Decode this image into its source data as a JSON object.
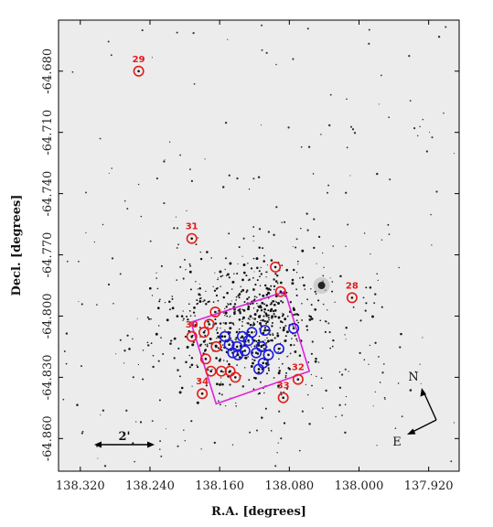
{
  "chart_data": {
    "type": "scatter",
    "xlabel": "R.A. [degrees]",
    "ylabel": "Decl. [degrees]",
    "x_reversed": true,
    "xlim": [
      138.345,
      137.885
    ],
    "ylim": [
      -64.876,
      -64.655
    ],
    "x_ticks": [
      "138.320",
      "138.240",
      "138.160",
      "138.080",
      "138.000",
      "137.920"
    ],
    "y_ticks": [
      "-64.680",
      "-64.710",
      "-64.740",
      "-64.770",
      "-64.800",
      "-64.830",
      "-64.860"
    ],
    "scale_bar_label": "2'",
    "compass": {
      "north": "N",
      "east": "E"
    },
    "field_box_color": "#e020e0",
    "labeled_stars": [
      {
        "id": "29",
        "ra": 138.253,
        "dec": -64.68
      },
      {
        "id": "31",
        "ra": 138.192,
        "dec": -64.762
      },
      {
        "id": "28",
        "ra": 138.008,
        "dec": -64.791
      },
      {
        "id": "30",
        "ra": 138.192,
        "dec": -64.81
      },
      {
        "id": "34",
        "ra": 138.18,
        "dec": -64.838
      },
      {
        "id": "32",
        "ra": 138.07,
        "dec": -64.831
      },
      {
        "id": "33",
        "ra": 138.087,
        "dec": -64.84
      }
    ],
    "red_members": [
      {
        "ra": 138.096,
        "dec": -64.776
      },
      {
        "ra": 138.09,
        "dec": -64.788
      },
      {
        "ra": 138.165,
        "dec": -64.798
      },
      {
        "ra": 138.172,
        "dec": -64.804
      },
      {
        "ra": 138.178,
        "dec": -64.808
      },
      {
        "ra": 138.164,
        "dec": -64.815
      },
      {
        "ra": 138.176,
        "dec": -64.821
      },
      {
        "ra": 138.17,
        "dec": -64.827
      },
      {
        "ra": 138.158,
        "dec": -64.827
      },
      {
        "ra": 138.148,
        "dec": -64.827
      },
      {
        "ra": 138.142,
        "dec": -64.83
      }
    ],
    "blue_members": [
      {
        "ra": 138.075,
        "dec": -64.806
      },
      {
        "ra": 138.108,
        "dec": -64.807
      },
      {
        "ra": 138.123,
        "dec": -64.808
      },
      {
        "ra": 138.134,
        "dec": -64.81
      },
      {
        "ra": 138.154,
        "dec": -64.81
      },
      {
        "ra": 138.127,
        "dec": -64.812
      },
      {
        "ra": 138.149,
        "dec": -64.814
      },
      {
        "ra": 138.14,
        "dec": -64.815
      },
      {
        "ra": 138.112,
        "dec": -64.815
      },
      {
        "ra": 138.092,
        "dec": -64.816
      },
      {
        "ra": 138.145,
        "dec": -64.818
      },
      {
        "ra": 138.131,
        "dec": -64.817
      },
      {
        "ra": 138.118,
        "dec": -64.818
      },
      {
        "ra": 138.104,
        "dec": -64.819
      },
      {
        "ra": 138.139,
        "dec": -64.819
      },
      {
        "ra": 138.11,
        "dec": -64.823
      },
      {
        "ra": 138.115,
        "dec": -64.826
      }
    ],
    "field_box": [
      {
        "ra": 138.193,
        "dec": -64.803
      },
      {
        "ra": 138.085,
        "dec": -64.788
      },
      {
        "ra": 138.057,
        "dec": -64.827
      },
      {
        "ra": 138.164,
        "dec": -64.843
      }
    ],
    "bright_star": {
      "ra": 138.043,
      "dec": -64.785
    }
  }
}
